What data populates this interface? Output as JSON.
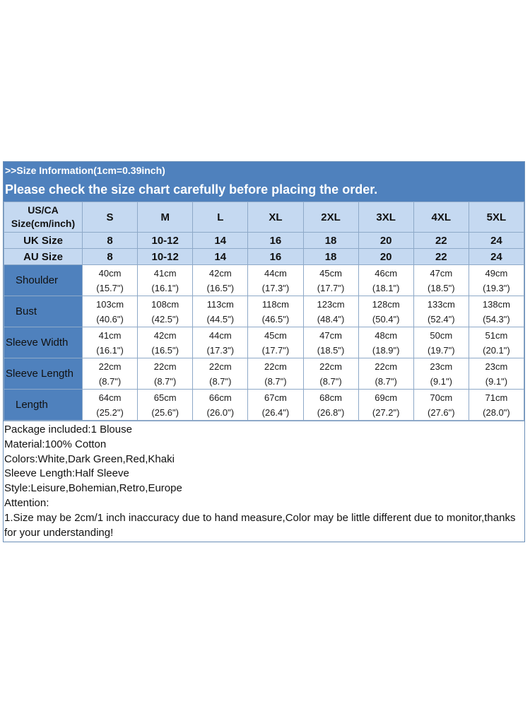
{
  "banner": {
    "info": ">>Size Information(1cm=0.39inch)",
    "notice": "Please check the size chart carefully before placing the order."
  },
  "table": {
    "us_label_line1": "US/CA",
    "us_label_line2": "Size(cm/inch)",
    "sizes": [
      "S",
      "M",
      "L",
      "XL",
      "2XL",
      "3XL",
      "4XL",
      "5XL"
    ],
    "uk_label": "UK Size",
    "uk": [
      "8",
      "10-12",
      "14",
      "16",
      "18",
      "20",
      "22",
      "24"
    ],
    "au_label": "AU Size",
    "au": [
      "8",
      "10-12",
      "14",
      "16",
      "18",
      "20",
      "22",
      "24"
    ],
    "rows": [
      {
        "label": "Shoulder",
        "cm": [
          "40cm",
          "41cm",
          "42cm",
          "44cm",
          "45cm",
          "46cm",
          "47cm",
          "49cm"
        ],
        "inch": [
          "(15.7\")",
          "(16.1\")",
          "(16.5\")",
          "(17.3\")",
          "(17.7\")",
          "(18.1\")",
          "(18.5\")",
          "(19.3\")"
        ]
      },
      {
        "label": "Bust",
        "cm": [
          "103cm",
          "108cm",
          "113cm",
          "118cm",
          "123cm",
          "128cm",
          "133cm",
          "138cm"
        ],
        "inch": [
          "(40.6\")",
          "(42.5\")",
          "(44.5\")",
          "(46.5\")",
          "(48.4\")",
          "(50.4\")",
          "(52.4\")",
          "(54.3\")"
        ]
      },
      {
        "label": "Sleeve Width",
        "cm": [
          "41cm",
          "42cm",
          "44cm",
          "45cm",
          "47cm",
          "48cm",
          "50cm",
          "51cm"
        ],
        "inch": [
          "(16.1\")",
          "(16.5\")",
          "(17.3\")",
          "(17.7\")",
          "(18.5\")",
          "(18.9\")",
          "(19.7\")",
          "(20.1\")"
        ]
      },
      {
        "label": "Sleeve Length",
        "cm": [
          "22cm",
          "22cm",
          "22cm",
          "22cm",
          "22cm",
          "22cm",
          "23cm",
          "23cm"
        ],
        "inch": [
          "(8.7\")",
          "(8.7\")",
          "(8.7\")",
          "(8.7\")",
          "(8.7\")",
          "(8.7\")",
          "(9.1\")",
          "(9.1\")"
        ]
      },
      {
        "label": "Length",
        "cm": [
          "64cm",
          "65cm",
          "66cm",
          "67cm",
          "68cm",
          "69cm",
          "70cm",
          "71cm"
        ],
        "inch": [
          "(25.2\")",
          "(25.6\")",
          "(26.0\")",
          "(26.4\")",
          "(26.8\")",
          "(27.2\")",
          "(27.6\")",
          "(28.0\")"
        ]
      }
    ]
  },
  "notes": [
    "Package included:1 Blouse",
    "Material:100% Cotton",
    "Colors:White,Dark Green,Red,Khaki",
    "Sleeve Length:Half Sleeve",
    "Style:Leisure,Bohemian,Retro,Europe",
    "Attention:",
    "1.Size may be 2cm/1 inch inaccuracy due to hand measure,Color may be little different due to monitor,thanks for your understanding!"
  ],
  "colors": {
    "banner": "#4f81bd",
    "header_cells": "#c5d9f1",
    "measure_label_cells": "#4f81bd",
    "grid_lines": "#8ea9c8"
  }
}
